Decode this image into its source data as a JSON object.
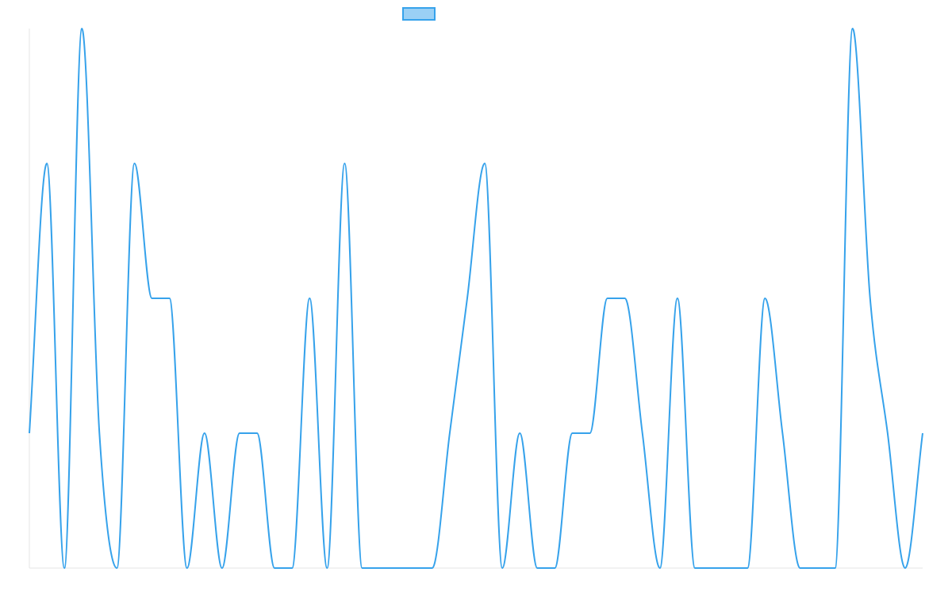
{
  "colors": {
    "line": "#36a2eb",
    "legend_fill": "#9ad0f5",
    "axis": "#e5e5e5",
    "background": "#ffffff"
  },
  "legend": {
    "position": "top-center",
    "label": ""
  },
  "chart_data": {
    "type": "line",
    "title": "",
    "xlabel": "",
    "ylabel": "",
    "tick_labels_visible": false,
    "grid": false,
    "smoothing": "monotone",
    "x_count": 52,
    "ylim": [
      0,
      4
    ],
    "series": [
      {
        "name": "",
        "values": [
          1,
          3,
          0,
          4,
          1,
          0,
          3,
          2,
          2,
          0,
          1,
          0,
          1,
          1,
          0,
          0,
          2,
          0,
          3,
          0,
          0,
          0,
          0,
          0,
          1,
          2,
          3,
          0,
          1,
          0,
          0,
          1,
          1,
          2,
          2,
          1,
          0,
          2,
          0,
          0,
          0,
          0,
          2,
          1,
          0,
          0,
          0,
          4,
          2,
          1,
          0,
          1
        ]
      }
    ]
  }
}
